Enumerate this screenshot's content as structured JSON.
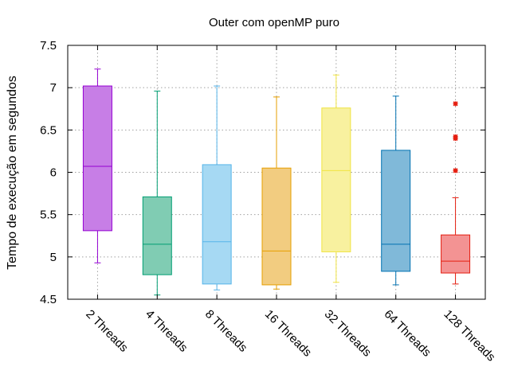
{
  "chart_data": {
    "type": "boxplot",
    "title": "Outer com openMP puro",
    "xlabel": "",
    "ylabel": "Tempo de execução em segundos",
    "ylim": [
      4.5,
      7.5
    ],
    "yticks": [
      "4.5",
      "5",
      "5.5",
      "6",
      "6.5",
      "7",
      "7.5"
    ],
    "grid": true,
    "categories": [
      "2 Threads",
      "4 Threads",
      "8 Threads",
      "16 Threads",
      "32 Threads",
      "64 Threads",
      "128 Threads"
    ],
    "boxes": [
      {
        "min": 4.93,
        "q1": 5.31,
        "median": 6.07,
        "q3": 7.02,
        "max": 7.22,
        "outliers": [],
        "fill": "#c77ee6",
        "stroke": "#9400d3"
      },
      {
        "min": 4.55,
        "q1": 4.79,
        "median": 5.15,
        "q3": 5.71,
        "max": 6.96,
        "outliers": [],
        "fill": "#80ccb3",
        "stroke": "#009e73"
      },
      {
        "min": 4.61,
        "q1": 4.68,
        "median": 5.18,
        "q3": 6.09,
        "max": 7.02,
        "outliers": [],
        "fill": "#a6d9f3",
        "stroke": "#56b4e9"
      },
      {
        "min": 4.62,
        "q1": 4.67,
        "median": 5.07,
        "q3": 6.05,
        "max": 6.89,
        "outliers": [],
        "fill": "#f2cc80",
        "stroke": "#e69f00"
      },
      {
        "min": 4.7,
        "q1": 5.06,
        "median": 6.02,
        "q3": 6.76,
        "max": 7.15,
        "outliers": [],
        "fill": "#f8f19f",
        "stroke": "#f0e442"
      },
      {
        "min": 4.67,
        "q1": 4.83,
        "median": 5.15,
        "q3": 6.26,
        "max": 6.9,
        "outliers": [],
        "fill": "#80b9d9",
        "stroke": "#0072b2"
      },
      {
        "min": 4.68,
        "q1": 4.81,
        "median": 4.95,
        "q3": 5.26,
        "max": 5.7,
        "outliers": [
          6.02,
          6.4,
          6.42,
          6.81
        ],
        "fill": "#f39393",
        "stroke": "#e51e10"
      }
    ]
  }
}
